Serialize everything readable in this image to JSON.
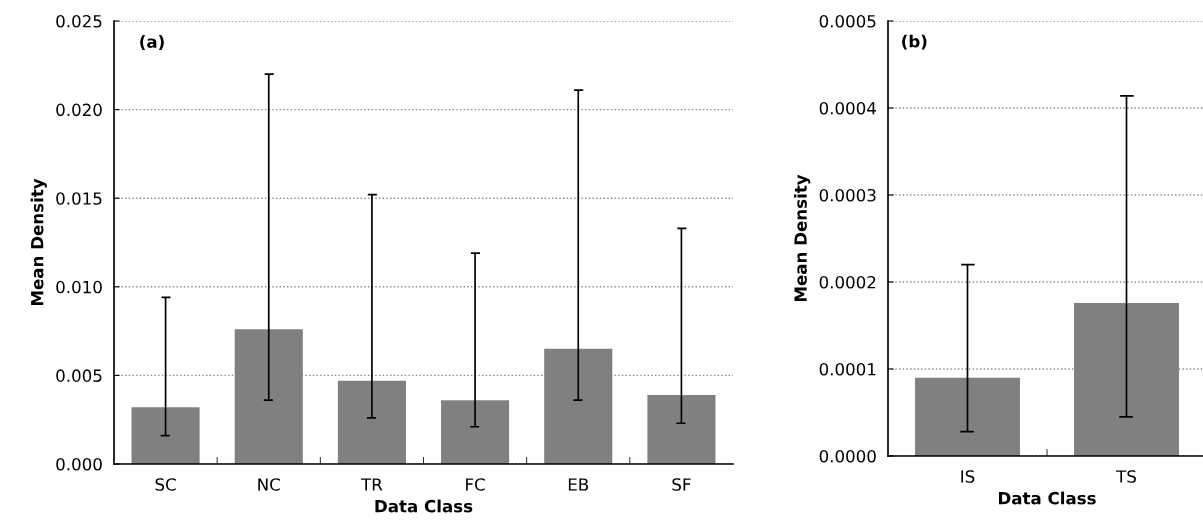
{
  "chart_data": [
    {
      "type": "bar",
      "categories": [
        "SC",
        "NC",
        "TR",
        "FC",
        "EB",
        "SF"
      ],
      "xlabel": "Data Class",
      "ylabel": "Mean Density",
      "annotations": [
        "(a)"
      ],
      "series": [
        {
          "color": "#808080",
          "values": [
            0.0032,
            0.0076,
            0.0047,
            0.0036,
            0.0065,
            0.0039
          ],
          "errors": [
            [
              0.0016,
              0.0094
            ],
            [
              0.0036,
              0.022
            ],
            [
              0.0026,
              0.0152
            ],
            [
              0.0021,
              0.0119
            ],
            [
              0.0036,
              0.0211
            ],
            [
              0.0023,
              0.0133
            ]
          ]
        }
      ],
      "ylim": [
        0,
        0.025
      ],
      "yticks": [
        {
          "value": 0,
          "label": "0.000"
        },
        {
          "value": 0.005,
          "label": "0.005"
        },
        {
          "value": 0.01,
          "label": "0.010"
        },
        {
          "value": 0.015,
          "label": "0.015"
        },
        {
          "value": 0.02,
          "label": "0.020"
        },
        {
          "value": 0.025,
          "label": "0.025"
        }
      ],
      "grid": "y",
      "legend": false
    },
    {
      "type": "bar",
      "categories": [
        "IS",
        "TS"
      ],
      "xlabel": "Data Class",
      "ylabel": "Mean Density",
      "annotations": [
        "(b)"
      ],
      "series": [
        {
          "color": "#808080",
          "values": [
            9e-05,
            0.000176
          ],
          "errors": [
            [
              2.8e-05,
              0.00022
            ],
            [
              4.5e-05,
              0.000414
            ]
          ]
        }
      ],
      "ylim": [
        0,
        0.0005
      ],
      "yticks": [
        {
          "value": 0,
          "label": "0.0000"
        },
        {
          "value": 0.0001,
          "label": "0.0001"
        },
        {
          "value": 0.0002,
          "label": "0.0002"
        },
        {
          "value": 0.0003,
          "label": "0.0003"
        },
        {
          "value": 0.0004,
          "label": "0.0004"
        },
        {
          "value": 0.0005,
          "label": "0.0005"
        }
      ],
      "grid": "y",
      "legend": false
    }
  ]
}
